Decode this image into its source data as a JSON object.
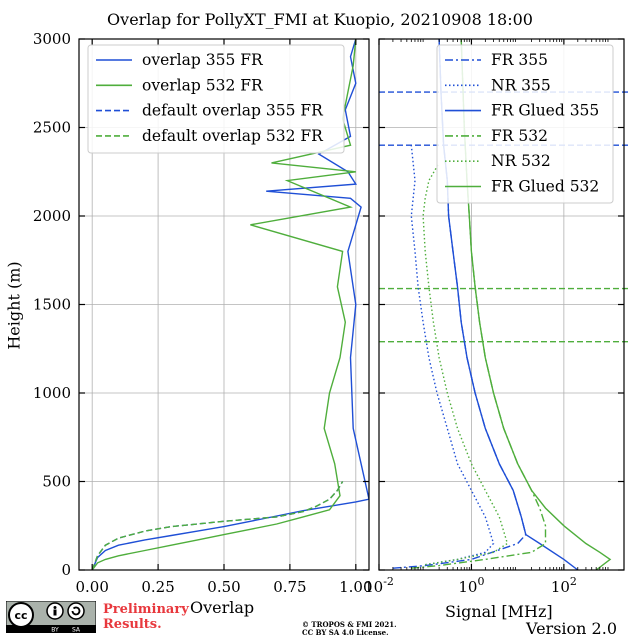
{
  "title": "Overlap for PollyXT_FMI at Kuopio, 20210908 18:00",
  "footer": {
    "preliminary_line1": "Preliminary",
    "preliminary_line2": "Results.",
    "copyright_line1": "© TROPOS & FMI 2021.",
    "copyright_line2": "CC BY SA 4.0 License.",
    "version": "Version 2.0",
    "logo_letters": "CC BY SA"
  },
  "chart_data": [
    {
      "type": "line",
      "title": "",
      "xlabel": "Overlap",
      "ylabel": "Height (m)",
      "xlim": [
        -0.05,
        1.05
      ],
      "ylim": [
        0,
        3000
      ],
      "xticks": [
        "0.00",
        "0.25",
        "0.50",
        "0.75",
        "1.00"
      ],
      "yticks": [
        "0",
        "500",
        "1000",
        "1500",
        "2000",
        "2500",
        "3000"
      ],
      "grid": true,
      "legend_position": "top-left",
      "series": [
        {
          "name": "overlap 355 FR",
          "color": "#1f4fd6",
          "style": "solid",
          "x": [
            0.0,
            0.02,
            0.05,
            0.1,
            0.2,
            0.3,
            0.4,
            0.5,
            0.6,
            0.7,
            0.8,
            0.9,
            1.0,
            1.05,
            0.99,
            0.98,
            1.0,
            0.97,
            0.99,
            1.02,
            0.98,
            0.66,
            1.0,
            0.97,
            0.86,
            0.98,
            0.96,
            1.0,
            0.98,
            1.0
          ],
          "y": [
            0,
            70,
            110,
            140,
            170,
            195,
            220,
            245,
            275,
            305,
            335,
            360,
            385,
            400,
            800,
            1200,
            1500,
            1800,
            1900,
            2050,
            2100,
            2140,
            2180,
            2250,
            2350,
            2450,
            2600,
            2750,
            2900,
            3000
          ]
        },
        {
          "name": "overlap 532 FR",
          "color": "#4fae3c",
          "style": "solid",
          "x": [
            0.0,
            0.02,
            0.05,
            0.1,
            0.2,
            0.3,
            0.4,
            0.5,
            0.6,
            0.7,
            0.8,
            0.9,
            0.94,
            0.92,
            0.88,
            0.9,
            0.94,
            0.96,
            0.93,
            0.95,
            0.6,
            0.98,
            0.74,
            1.0,
            0.68,
            0.98,
            0.95,
            0.97,
            0.99,
            1.0
          ],
          "y": [
            0,
            40,
            60,
            80,
            110,
            140,
            170,
            200,
            230,
            260,
            300,
            340,
            420,
            600,
            800,
            1000,
            1200,
            1400,
            1600,
            1800,
            1950,
            2050,
            2200,
            2250,
            2300,
            2400,
            2550,
            2700,
            2850,
            3000
          ]
        },
        {
          "name": "default overlap 355 FR",
          "color": "#1f4fd6",
          "style": "dashed",
          "x": [
            0.0,
            0.02,
            0.05,
            0.1,
            0.2,
            0.3,
            0.5,
            0.7,
            0.8,
            0.85,
            0.9,
            0.93,
            0.95
          ],
          "y": [
            0,
            80,
            140,
            180,
            220,
            245,
            275,
            300,
            330,
            360,
            400,
            450,
            500
          ]
        },
        {
          "name": "default overlap 532 FR",
          "color": "#4fae3c",
          "style": "dashed",
          "x": [
            0.0,
            0.02,
            0.05,
            0.1,
            0.2,
            0.3,
            0.5,
            0.7,
            0.8,
            0.85,
            0.9,
            0.93,
            0.95
          ],
          "y": [
            0,
            80,
            140,
            180,
            220,
            245,
            275,
            300,
            330,
            360,
            400,
            450,
            500
          ]
        }
      ]
    },
    {
      "type": "line",
      "title": "",
      "xlabel": "Signal [MHz]",
      "ylabel": "",
      "xscale": "log",
      "xlim": [
        0.01,
        2000
      ],
      "ylim": [
        0,
        3000
      ],
      "xticks": [
        "10^-2",
        "10^0",
        "10^2"
      ],
      "grid": true,
      "legend_position": "top-right",
      "hlines": [
        {
          "y": 2700,
          "color": "#1f4fd6",
          "style": "dashed"
        },
        {
          "y": 2400,
          "color": "#1f4fd6",
          "style": "dashed"
        },
        {
          "y": 1590,
          "color": "#4fae3c",
          "style": "dashed"
        },
        {
          "y": 1290,
          "color": "#4fae3c",
          "style": "dashed"
        }
      ],
      "series": [
        {
          "name": "FR 355",
          "color": "#1f4fd6",
          "style": "dashdot",
          "x": [
            0.02,
            0.1,
            1,
            10,
            15,
            12,
            8,
            4,
            2,
            1.2,
            0.8,
            0.6,
            0.5,
            0.4,
            0.32,
            0.3,
            0.25,
            0.22,
            0.2
          ],
          "y": [
            10,
            25,
            60,
            150,
            200,
            300,
            450,
            600,
            800,
            1000,
            1200,
            1400,
            1600,
            1800,
            2000,
            2200,
            2400,
            2700,
            3000
          ]
        },
        {
          "name": "NR 355",
          "color": "#1f4fd6",
          "style": "dotted",
          "x": [
            0.1,
            0.5,
            2,
            3,
            2,
            1,
            0.5,
            0.3,
            0.18,
            0.12,
            0.09,
            0.07,
            0.06,
            0.05,
            0.06,
            0.05
          ],
          "y": [
            30,
            60,
            100,
            150,
            300,
            450,
            600,
            800,
            1000,
            1200,
            1400,
            1600,
            1800,
            2000,
            2200,
            2400
          ]
        },
        {
          "name": "FR Glued 355",
          "color": "#1f4fd6",
          "style": "solid",
          "x": [
            200,
            100,
            30,
            15,
            12,
            8,
            4,
            2,
            1.2,
            0.8,
            0.6,
            0.5,
            0.4,
            0.32,
            0.3,
            0.25,
            0.22,
            0.2
          ],
          "y": [
            0,
            60,
            150,
            200,
            300,
            450,
            600,
            800,
            1000,
            1200,
            1400,
            1600,
            1800,
            2000,
            2200,
            2400,
            2700,
            3000
          ]
        },
        {
          "name": "FR 532",
          "color": "#4fae3c",
          "style": "dashdot",
          "x": [
            0.05,
            0.2,
            2,
            20,
            40,
            40,
            30,
            20,
            10,
            5,
            3,
            2,
            1.5,
            1.2,
            1.0,
            0.9,
            0.8,
            0.7,
            0.6
          ],
          "y": [
            10,
            25,
            60,
            100,
            150,
            250,
            350,
            450,
            600,
            800,
            1000,
            1200,
            1400,
            1600,
            1800,
            2000,
            2200,
            2500,
            3000
          ]
        },
        {
          "name": "NR 532",
          "color": "#4fae3c",
          "style": "dotted",
          "x": [
            0.1,
            0.5,
            3,
            6,
            4,
            2,
            1,
            0.5,
            0.3,
            0.2,
            0.15,
            0.12,
            0.1,
            0.09,
            0.1,
            0.12,
            0.2
          ],
          "y": [
            30,
            60,
            100,
            150,
            300,
            450,
            600,
            800,
            1000,
            1200,
            1400,
            1600,
            1800,
            2000,
            2100,
            2200,
            2300
          ]
        },
        {
          "name": "FR Glued 532",
          "color": "#4fae3c",
          "style": "solid",
          "x": [
            500,
            1000,
            600,
            300,
            100,
            40,
            20,
            10,
            5,
            3,
            2,
            1.5,
            1.2,
            1.0,
            0.9,
            0.8,
            0.7,
            0.6
          ],
          "y": [
            0,
            60,
            100,
            150,
            250,
            350,
            450,
            600,
            800,
            1000,
            1200,
            1400,
            1600,
            1800,
            2000,
            2200,
            2500,
            3000
          ]
        }
      ]
    }
  ]
}
